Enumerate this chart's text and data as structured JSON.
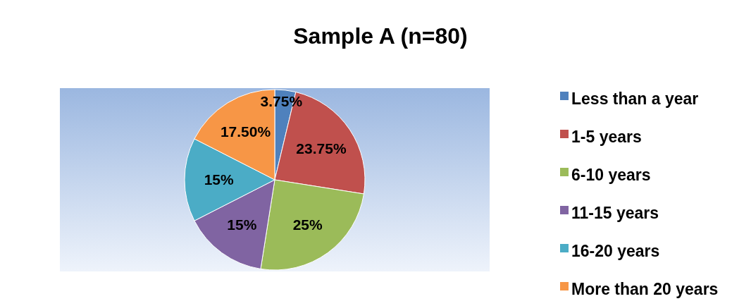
{
  "chart_data": {
    "type": "pie",
    "title": "Sample A (n=80)",
    "categories": [
      "Less than a year",
      "1-5 years",
      "6-10 years",
      "11-15 years",
      "16-20 years",
      "More than 20 years"
    ],
    "values": [
      3.75,
      23.75,
      25,
      15,
      15,
      17.5
    ],
    "value_labels": [
      "3.75%",
      "23.75%",
      "25%",
      "15%",
      "15%",
      "17.50%"
    ],
    "colors": [
      "#4f81bd",
      "#c0504d",
      "#9bbb59",
      "#8064a2",
      "#4bacc6",
      "#f79646"
    ],
    "legend": "right"
  }
}
